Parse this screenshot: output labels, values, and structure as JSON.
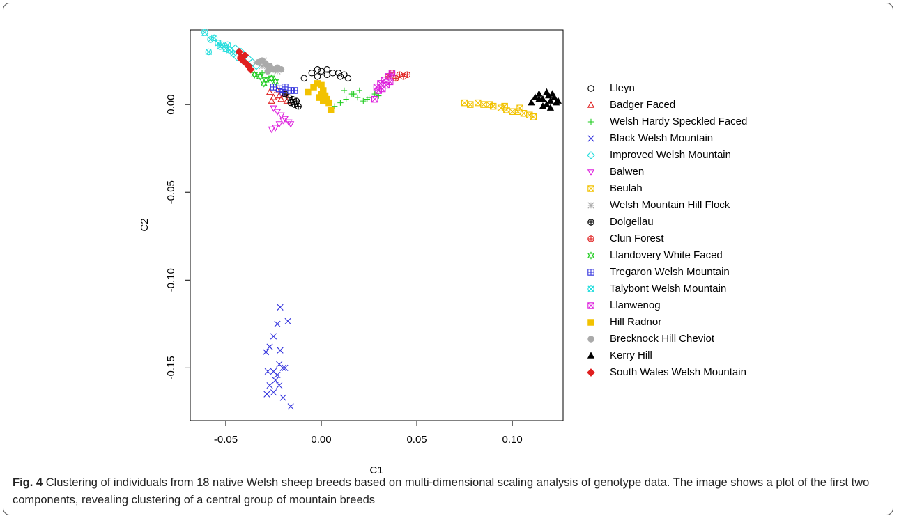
{
  "chart_data": {
    "type": "scatter",
    "x_label": "C1",
    "y_label": "C2",
    "xlim": [
      -0.0686,
      0.1266
    ],
    "ylim": [
      -0.18,
      0.0425
    ],
    "xticks": [
      -0.05,
      {
        "value": 0,
        "label": "0.00"
      },
      0.05,
      {
        "value": 0.1,
        "label": "0.10"
      }
    ],
    "yticks": [
      {
        "value": 0,
        "label": "0.00"
      },
      -0.05,
      {
        "value": -0.1,
        "label": "-0.10"
      },
      -0.15
    ],
    "series": [
      {
        "name": "Lleyn",
        "color": "#000000",
        "marker": "circle",
        "x": [
          -0.009,
          -0.005,
          -0.002,
          0,
          0.003,
          0.006,
          0.009,
          0.012,
          0.014,
          0.01,
          -0.002,
          0.003
        ],
        "values": [
          0.015,
          0.018,
          0.02,
          0.019,
          0.02,
          0.018,
          0.018,
          0.017,
          0.015,
          0.016,
          0.016,
          0.017
        ]
      },
      {
        "name": "Badger Faced",
        "color": "#e02020",
        "marker": "triangle",
        "x": [
          -0.027,
          -0.025,
          -0.023,
          -0.021,
          -0.019,
          -0.026,
          -0.022,
          -0.018
        ],
        "values": [
          0.007,
          0.004,
          0.008,
          0.003,
          0.006,
          0.002,
          0.005,
          0.002
        ]
      },
      {
        "name": "Welsh Hardy Speckled Faced",
        "color": "#22cc22",
        "marker": "plus",
        "x": [
          0.007,
          0.01,
          0.013,
          0.016,
          0.019,
          0.022,
          0.025,
          0.028,
          0.02,
          0.012,
          0.017,
          0.024,
          0.03,
          -0.034,
          -0.031
        ],
        "values": [
          -0.001,
          0.001,
          0.003,
          0.006,
          0.004,
          0.002,
          0.004,
          0.006,
          0.008,
          0.008,
          0.006,
          0.003,
          0.005,
          0.016,
          0.018
        ]
      },
      {
        "name": "Black Welsh Mountain",
        "color": "#3333dd",
        "marker": "x",
        "x": [
          -0.0215,
          -0.0175,
          -0.023,
          -0.025,
          -0.027,
          -0.029,
          -0.0215,
          -0.022,
          -0.025,
          -0.028,
          -0.02,
          -0.019,
          -0.024,
          -0.027,
          -0.025,
          -0.022,
          -0.02,
          -0.016,
          -0.0285,
          -0.023
        ],
        "values": [
          -0.1155,
          -0.1234,
          -0.125,
          -0.132,
          -0.138,
          -0.141,
          -0.14,
          -0.148,
          -0.152,
          -0.152,
          -0.15,
          -0.15,
          -0.157,
          -0.16,
          -0.164,
          -0.16,
          -0.167,
          -0.172,
          -0.165,
          -0.154
        ]
      },
      {
        "name": "Improved Welsh Mountain",
        "color": "#22dddd",
        "marker": "diamond",
        "x": [
          -0.045,
          -0.042,
          -0.04,
          -0.038,
          -0.036,
          -0.034,
          -0.044,
          -0.041
        ],
        "values": [
          0.032,
          0.03,
          0.028,
          0.026,
          0.024,
          0.022,
          0.027,
          0.025
        ]
      },
      {
        "name": "Balwen",
        "color": "#dd22dd",
        "marker": "triangle-down",
        "x": [
          -0.025,
          -0.023,
          -0.021,
          -0.019,
          -0.017,
          -0.022,
          -0.024,
          -0.02,
          -0.016,
          -0.026
        ],
        "values": [
          -0.002,
          -0.004,
          -0.006,
          -0.008,
          -0.01,
          -0.011,
          -0.013,
          -0.009,
          -0.011,
          -0.014
        ]
      },
      {
        "name": "Beulah",
        "color": "#f2c200",
        "marker": "square-x",
        "x": [
          0.075,
          0.078,
          0.082,
          0.085,
          0.09,
          0.094,
          0.097,
          0.1,
          0.103,
          0.106,
          0.109,
          0.111,
          0.096,
          0.104,
          0.088
        ],
        "values": [
          0.001,
          0.0,
          0.001,
          0.0,
          -0.001,
          -0.002,
          -0.003,
          -0.004,
          -0.004,
          -0.005,
          -0.006,
          -0.007,
          -0.001,
          -0.002,
          0.0
        ]
      },
      {
        "name": "Welsh Mountain Hill Flock",
        "color": "#aaaaaa",
        "marker": "asterisk",
        "x": [
          -0.034,
          -0.031,
          -0.028,
          -0.025,
          -0.023,
          -0.03
        ],
        "values": [
          0.024,
          0.022,
          0.021,
          0.02,
          0.019,
          0.025
        ]
      },
      {
        "name": "Dolgellau",
        "color": "#000000",
        "marker": "circle-plus",
        "x": [
          -0.019,
          -0.017,
          -0.015,
          -0.013,
          -0.012,
          -0.016,
          -0.014
        ],
        "values": [
          0.006,
          0.004,
          0.003,
          0.002,
          -0.001,
          0.001,
          0.0
        ]
      },
      {
        "name": "Clun Forest",
        "color": "#e02020",
        "marker": "circle-plus",
        "x": [
          0.035,
          0.037,
          0.039,
          0.041,
          0.043,
          0.045
        ],
        "values": [
          0.016,
          0.018,
          0.015,
          0.017,
          0.016,
          0.017
        ]
      },
      {
        "name": "Llandovery White Faced",
        "color": "#22cc22",
        "marker": "star-david",
        "x": [
          -0.035,
          -0.032,
          -0.029,
          -0.026,
          -0.024,
          -0.03
        ],
        "values": [
          0.017,
          0.016,
          0.014,
          0.015,
          0.013,
          0.012
        ]
      },
      {
        "name": "Tregaron Welsh Mountain",
        "color": "#3333dd",
        "marker": "square-plus",
        "x": [
          -0.025,
          -0.022,
          -0.019,
          -0.016,
          -0.014,
          -0.02
        ],
        "values": [
          0.01,
          0.009,
          0.01,
          0.008,
          0.008,
          0.007
        ]
      },
      {
        "name": "Talybont Welsh Mountain",
        "color": "#22dddd",
        "marker": "circle-x",
        "x": [
          -0.061,
          -0.058,
          -0.056,
          -0.054,
          -0.052,
          -0.05,
          -0.048,
          -0.046,
          -0.059,
          -0.053,
          -0.049
        ],
        "values": [
          0.041,
          0.037,
          0.038,
          0.035,
          0.034,
          0.032,
          0.031,
          0.029,
          0.03,
          0.033,
          0.034
        ]
      },
      {
        "name": "Llanwenog",
        "color": "#dd22dd",
        "marker": "square-x",
        "x": [
          0.029,
          0.031,
          0.033,
          0.035,
          0.037,
          0.03,
          0.034,
          0.028,
          0.032,
          0.036
        ],
        "values": [
          0.01,
          0.012,
          0.014,
          0.016,
          0.018,
          0.008,
          0.011,
          0.003,
          0.009,
          0.013
        ]
      },
      {
        "name": "Hill Radnor",
        "color": "#f2c200",
        "marker": "filled-square",
        "x": [
          -0.007,
          -0.004,
          -0.002,
          0,
          0.001,
          0.002,
          0.003,
          0.004,
          -0.001,
          0.001,
          0.005,
          0
        ],
        "values": [
          0.007,
          0.01,
          0.012,
          0.011,
          0.008,
          0.005,
          0.003,
          0.001,
          0.004,
          0.002,
          -0.003,
          0.006
        ]
      },
      {
        "name": "Brecknock Hill Cheviot",
        "color": "#aaaaaa",
        "marker": "filled-circle",
        "x": [
          -0.033,
          -0.031,
          -0.029,
          -0.027,
          -0.025,
          -0.023,
          -0.021,
          -0.028
        ],
        "values": [
          0.024,
          0.025,
          0.023,
          0.022,
          0.02,
          0.021,
          0.02,
          0.019
        ]
      },
      {
        "name": "Kerry Hill",
        "color": "#000000",
        "marker": "filled-triangle",
        "x": [
          0.11,
          0.112,
          0.114,
          0.116,
          0.118,
          0.119,
          0.12,
          0.121,
          0.122,
          0.123,
          0.124,
          0.118,
          0.116,
          0.12,
          0.114
        ],
        "values": [
          0.001,
          0.004,
          0.006,
          0.003,
          0.007,
          0.005,
          0.002,
          0.006,
          0.004,
          0.001,
          0.002,
          0.0,
          -0.001,
          -0.002,
          0.003
        ]
      },
      {
        "name": "South Wales Welsh Mountain",
        "color": "#e02020",
        "marker": "filled-diamond",
        "x": [
          -0.043,
          -0.042,
          -0.041,
          -0.04,
          -0.039,
          -0.038,
          -0.037,
          -0.042
        ],
        "values": [
          0.03,
          0.027,
          0.025,
          0.028,
          0.023,
          0.022,
          0.02,
          0.026
        ]
      }
    ]
  },
  "caption": {
    "label": "Fig. 4",
    "text": "Clustering of individuals from 18 native Welsh sheep breeds based on multi-dimensional scaling analysis of genotype data. The image shows a plot of the first two components, revealing clustering of a central group of mountain breeds"
  }
}
